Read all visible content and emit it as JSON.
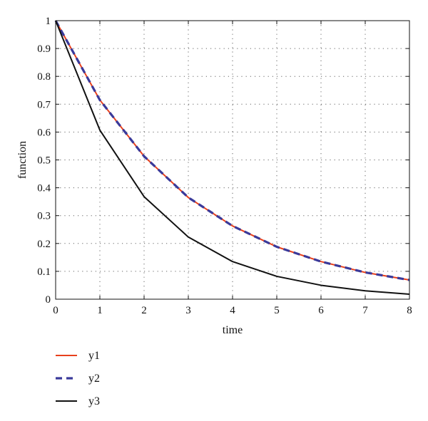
{
  "chart_data": {
    "type": "line",
    "title": "",
    "xlabel": "time",
    "ylabel": "function",
    "xlim": [
      0,
      8
    ],
    "ylim": [
      0,
      1
    ],
    "x_ticks": [
      0,
      1,
      2,
      3,
      4,
      5,
      6,
      7,
      8
    ],
    "y_ticks": [
      0,
      0.1,
      0.2,
      0.3,
      0.4,
      0.5,
      0.6,
      0.7,
      0.8,
      0.9,
      1
    ],
    "x_tick_labels": [
      "0",
      "1",
      "2",
      "3",
      "4",
      "5",
      "6",
      "7",
      "8"
    ],
    "y_tick_labels": [
      "0",
      "0.1",
      "0.2",
      "0.3",
      "0.4",
      "0.5",
      "0.6",
      "0.7",
      "0.8",
      "0.9",
      "1"
    ],
    "grid": true,
    "legend_position": "below",
    "x": [
      0,
      1,
      2,
      3,
      4,
      5,
      6,
      7,
      8
    ],
    "series": [
      {
        "name": "y1",
        "values": [
          1.0,
          0.715,
          0.513,
          0.365,
          0.263,
          0.188,
          0.135,
          0.096,
          0.069
        ],
        "color": "#e8401c",
        "dash": "solid"
      },
      {
        "name": "y2",
        "values": [
          1.0,
          0.715,
          0.513,
          0.365,
          0.263,
          0.188,
          0.135,
          0.096,
          0.069
        ],
        "color": "#3a3a9a",
        "dash": "dashed"
      },
      {
        "name": "y3",
        "values": [
          1.0,
          0.607,
          0.368,
          0.223,
          0.135,
          0.082,
          0.05,
          0.03,
          0.018
        ],
        "color": "#111111",
        "dash": "solid"
      }
    ]
  }
}
